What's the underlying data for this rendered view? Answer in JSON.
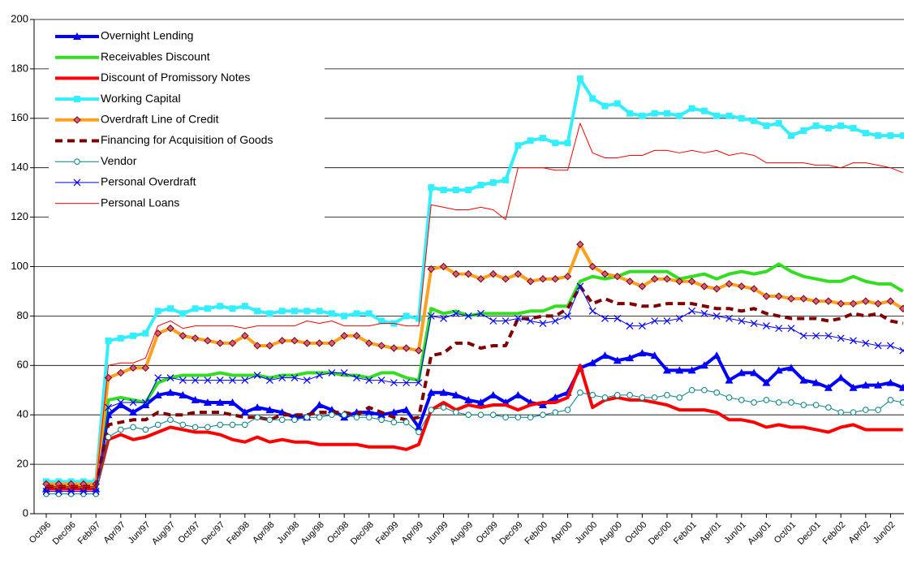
{
  "chart_data": {
    "type": "line",
    "categories": [
      "Oct/96",
      null,
      "Dec/96",
      null,
      "Feb/97",
      null,
      "Apr/97",
      null,
      "Jun/97",
      null,
      "Aug/97",
      null,
      "Oct/97",
      null,
      "Dec/97",
      null,
      "Feb/98",
      null,
      "Apr/98",
      null,
      "Jun/98",
      null,
      "Aug/98",
      null,
      "Oct/98",
      null,
      "Dec/98",
      null,
      "Feb/99",
      null,
      "Apr/99",
      null,
      "Jun/99",
      null,
      "Aug/99",
      null,
      "Oct/99",
      null,
      "Dec/99",
      null,
      "Feb/00",
      null,
      "Apr/00",
      null,
      "Jun/00",
      null,
      "Aug/00",
      null,
      "Oct/00",
      null,
      "Dec/00",
      null,
      "Feb/01",
      null,
      "Apr/01",
      null,
      "Jun/01",
      null,
      "Aug/01",
      null,
      "Oct/01",
      null,
      "Dec/01",
      null,
      "Feb/02",
      null,
      "Apr/02",
      null,
      "Jun/02",
      null
    ],
    "ylim": [
      0,
      200
    ],
    "yticks": [
      0,
      20,
      40,
      60,
      80,
      100,
      120,
      140,
      160,
      180,
      200
    ],
    "grid": true,
    "legend": "upper left",
    "series": [
      {
        "name": "Overnight Lending",
        "color": "#0000ff",
        "marker": "triangle",
        "line_width": 4,
        "values": [
          10,
          10,
          10,
          10,
          10,
          40,
          44,
          41,
          44,
          48,
          49,
          48,
          46,
          45,
          45,
          45,
          41,
          43,
          42,
          41,
          39,
          39,
          44,
          42,
          39,
          41,
          41,
          40,
          41,
          42,
          35,
          49,
          49,
          48,
          46,
          45,
          48,
          45,
          48,
          45,
          44,
          47,
          49,
          59,
          61,
          64,
          62,
          63,
          65,
          64,
          58,
          58,
          58,
          60,
          64,
          54,
          57,
          57,
          53,
          58,
          59,
          54,
          53,
          51,
          55,
          51,
          52,
          52,
          53,
          51
        ]
      },
      {
        "name": "Receivables Discount",
        "color": "#33dd22",
        "marker": "none",
        "line_width": 4,
        "values": [
          11,
          11,
          11,
          11,
          11,
          46,
          47,
          46,
          45,
          53,
          55,
          56,
          56,
          56,
          57,
          56,
          56,
          56,
          55,
          56,
          56,
          57,
          57,
          57,
          56,
          56,
          55,
          57,
          57,
          55,
          54,
          83,
          81,
          82,
          80,
          81,
          81,
          81,
          81,
          82,
          82,
          84,
          84,
          94,
          96,
          95,
          96,
          98,
          98,
          98,
          98,
          95,
          96,
          97,
          95,
          97,
          98,
          97,
          98,
          101,
          98,
          96,
          95,
          94,
          94,
          96,
          94,
          93,
          93,
          90
        ]
      },
      {
        "name": "Discount of Promissory Notes",
        "color": "#ff0000",
        "marker": "none",
        "line_width": 4,
        "values": [
          10,
          10,
          10,
          10,
          10,
          30,
          32,
          30,
          31,
          33,
          35,
          34,
          33,
          33,
          32,
          30,
          29,
          31,
          29,
          30,
          29,
          29,
          28,
          28,
          28,
          28,
          27,
          27,
          27,
          26,
          28,
          42,
          45,
          42,
          44,
          43,
          44,
          44,
          42,
          44,
          45,
          45,
          47,
          60,
          43,
          46,
          47,
          46,
          46,
          45,
          44,
          42,
          42,
          42,
          41,
          38,
          38,
          37,
          35,
          36,
          35,
          35,
          34,
          33,
          35,
          36,
          34,
          34,
          34,
          34
        ]
      },
      {
        "name": "Working Capital",
        "color": "#33eeff",
        "marker": "square",
        "line_width": 4,
        "values": [
          13,
          13,
          13,
          13,
          13,
          70,
          71,
          72,
          73,
          82,
          83,
          81,
          83,
          83,
          84,
          83,
          84,
          82,
          81,
          82,
          82,
          82,
          82,
          81,
          80,
          81,
          81,
          78,
          77,
          80,
          79,
          132,
          131,
          131,
          131,
          133,
          134,
          135,
          149,
          151,
          152,
          150,
          150,
          176,
          168,
          165,
          166,
          162,
          161,
          162,
          162,
          161,
          164,
          163,
          161,
          161,
          160,
          159,
          157,
          158,
          153,
          155,
          157,
          156,
          157,
          156,
          154,
          153,
          153,
          153
        ]
      },
      {
        "name": "Overdraft Line of Credit",
        "color": "#ffa020",
        "marker": "diamond",
        "line_width": 4,
        "values": [
          12,
          12,
          12,
          12,
          12,
          55,
          57,
          59,
          59,
          73,
          75,
          72,
          71,
          70,
          69,
          69,
          72,
          68,
          68,
          70,
          70,
          69,
          69,
          69,
          72,
          72,
          69,
          68,
          67,
          67,
          66,
          99,
          100,
          97,
          97,
          95,
          97,
          95,
          97,
          94,
          95,
          95,
          96,
          109,
          100,
          97,
          96,
          94,
          92,
          95,
          95,
          94,
          94,
          92,
          91,
          93,
          92,
          91,
          88,
          88,
          87,
          87,
          86,
          86,
          85,
          85,
          86,
          85,
          86,
          83
        ]
      },
      {
        "name": "Financing for Acquisition of Goods",
        "color": "#800000",
        "marker": "none",
        "line_width": 4,
        "dashed": true,
        "values": [
          11,
          11,
          11,
          11,
          11,
          36,
          37,
          38,
          38,
          41,
          40,
          40,
          41,
          41,
          41,
          40,
          39,
          39,
          38,
          40,
          40,
          40,
          41,
          41,
          41,
          40,
          43,
          41,
          39,
          38,
          39,
          64,
          65,
          69,
          69,
          67,
          68,
          68,
          79,
          79,
          80,
          80,
          83,
          92,
          85,
          87,
          85,
          85,
          84,
          84,
          85,
          85,
          85,
          84,
          83,
          83,
          82,
          83,
          81,
          80,
          79,
          79,
          79,
          78,
          79,
          81,
          80,
          81,
          78,
          77
        ]
      },
      {
        "name": "Vendor",
        "color": "#008080",
        "marker": "circle",
        "line_width": 1,
        "values": [
          8,
          8,
          8,
          8,
          8,
          31,
          34,
          35,
          34,
          36,
          38,
          36,
          35,
          35,
          36,
          36,
          36,
          39,
          38,
          38,
          38,
          39,
          39,
          40,
          40,
          39,
          39,
          38,
          37,
          37,
          33,
          42,
          43,
          41,
          40,
          40,
          40,
          39,
          39,
          39,
          40,
          41,
          42,
          49,
          48,
          47,
          48,
          48,
          47,
          47,
          48,
          47,
          50,
          50,
          49,
          47,
          46,
          45,
          46,
          45,
          45,
          44,
          44,
          43,
          41,
          41,
          42,
          42,
          46,
          45
        ]
      },
      {
        "name": "Personal Overdraft",
        "color": "#0000ff",
        "marker": "x",
        "line_width": 1,
        "values": [
          9,
          9,
          9,
          9,
          9,
          43,
          45,
          45,
          45,
          55,
          55,
          54,
          54,
          54,
          54,
          54,
          54,
          56,
          54,
          55,
          55,
          54,
          56,
          57,
          57,
          55,
          54,
          54,
          53,
          53,
          53,
          80,
          79,
          81,
          80,
          81,
          78,
          78,
          79,
          78,
          77,
          78,
          80,
          92,
          82,
          79,
          79,
          76,
          76,
          78,
          78,
          79,
          82,
          81,
          80,
          79,
          78,
          77,
          76,
          75,
          75,
          72,
          72,
          72,
          71,
          70,
          69,
          68,
          68,
          66
        ]
      },
      {
        "name": "Personal Loans",
        "color": "#ff0000",
        "marker": "none",
        "line_width": 1,
        "values": [
          11,
          11,
          11,
          11,
          11,
          60,
          61,
          61,
          63,
          76,
          78,
          75,
          76,
          76,
          76,
          76,
          75,
          76,
          76,
          76,
          76,
          78,
          77,
          78,
          76,
          76,
          76,
          77,
          77,
          76,
          76,
          125,
          124,
          123,
          123,
          124,
          123,
          119,
          140,
          140,
          140,
          139,
          139,
          158,
          146,
          144,
          144,
          145,
          145,
          147,
          147,
          146,
          147,
          146,
          147,
          145,
          146,
          145,
          142,
          142,
          142,
          142,
          141,
          141,
          140,
          142,
          142,
          141,
          140,
          138
        ]
      }
    ]
  }
}
